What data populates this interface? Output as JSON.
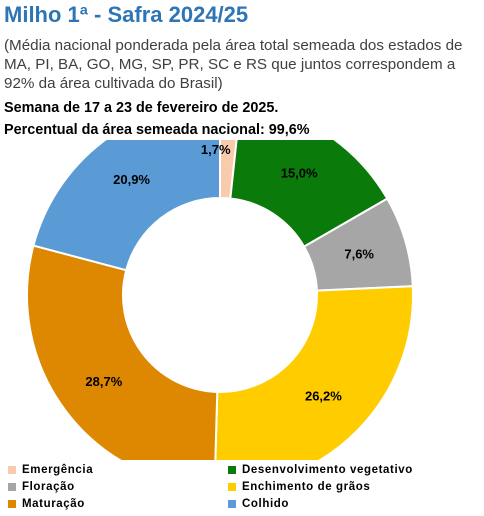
{
  "header": {
    "title": "Milho 1ª - Safra 2024/25",
    "subtitle": "(Média nacional ponderada pela área total semeada dos estados de MA, PI, BA, GO, MG, SP, PR, SC e RS que juntos correspondem a 92% da área cultivada do Brasil)",
    "week": "Semana de 17 a 23 de fevereiro de 2025.",
    "percent_sown": "Percentual da área semeada nacional: 99,6%"
  },
  "chart_data": {
    "type": "pie",
    "donut": true,
    "start": "12 o'clock, clockwise",
    "legend_position": "bottom",
    "slices": [
      {
        "name": "Emergência",
        "value": 1.7,
        "label": "1,7%",
        "color": "#f8cbad"
      },
      {
        "name": "Desenvolvimento vegetativo",
        "value": 15.0,
        "label": "15,0%",
        "color": "#0a7a0a"
      },
      {
        "name": "Floração",
        "value": 7.6,
        "label": "7,6%",
        "color": "#a6a6a6"
      },
      {
        "name": "Enchimento de grãos",
        "value": 26.2,
        "label": "26,2%",
        "color": "#ffcc00"
      },
      {
        "name": "Maturação",
        "value": 28.7,
        "label": "28,7%",
        "color": "#dd8800"
      },
      {
        "name": "Colhido",
        "value": 20.9,
        "label": "20,9%",
        "color": "#5b9bd5"
      }
    ]
  }
}
